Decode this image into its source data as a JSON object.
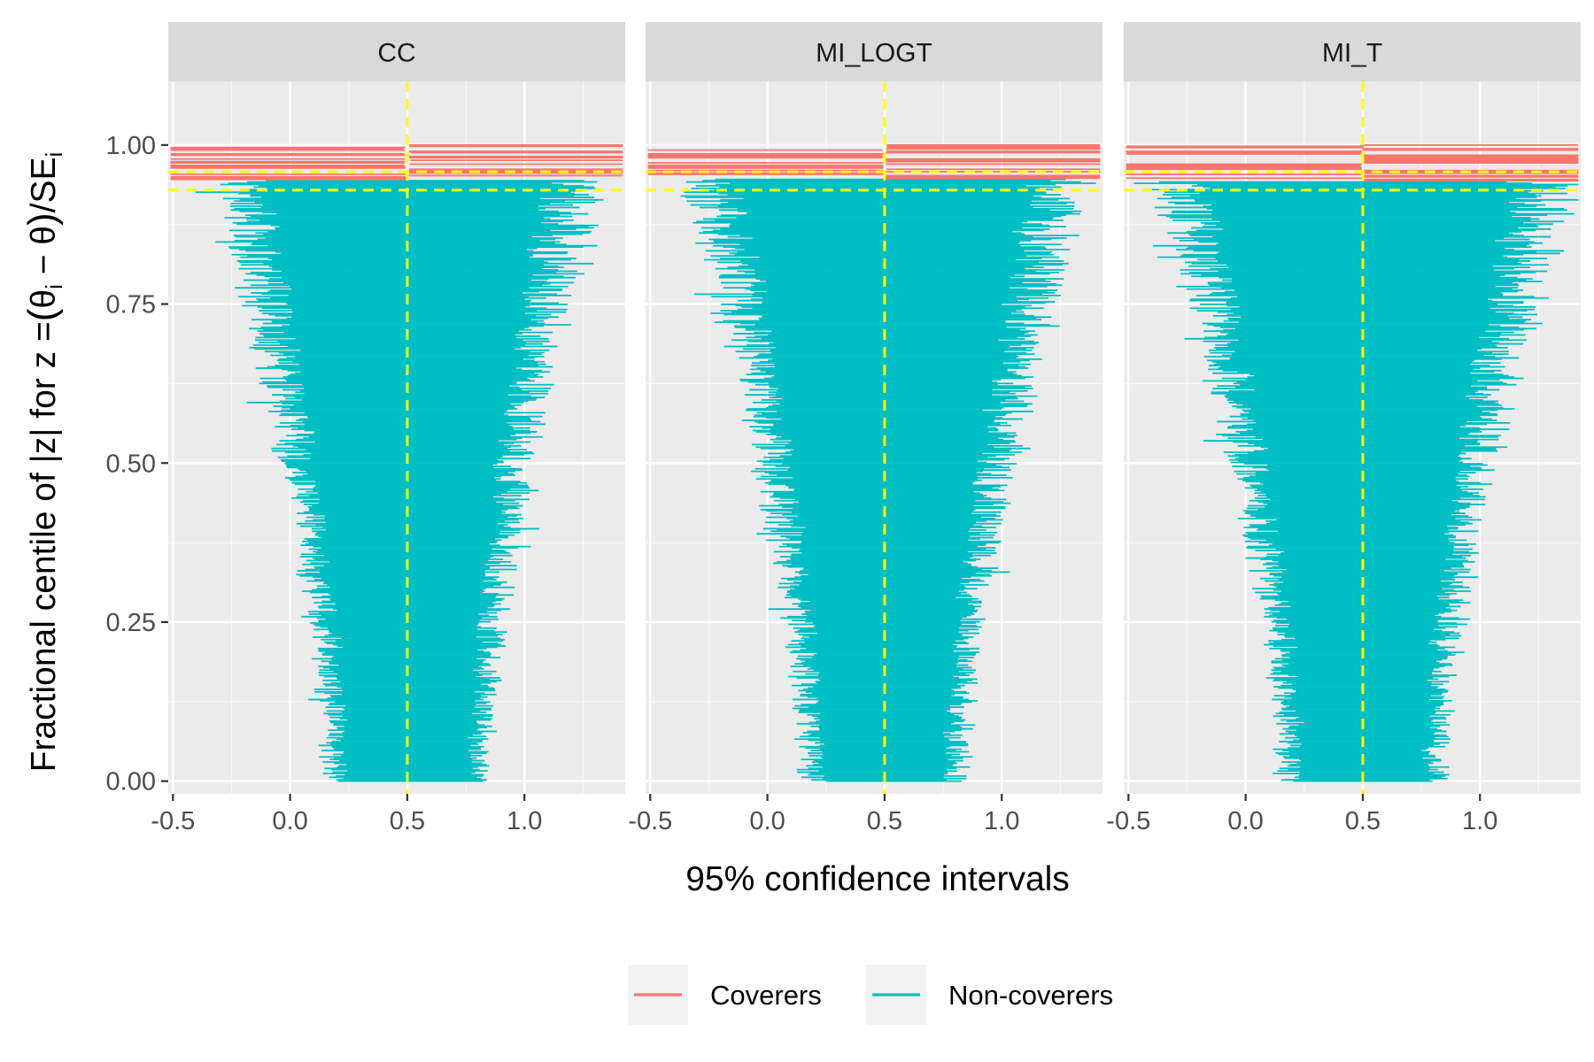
{
  "chart_data": {
    "type": "interval",
    "title": "",
    "xlabel": "95% confidence intervals",
    "ylabel_parts": {
      "pre": "Fractional centile of |z| for z =",
      "open": "(",
      "theta_i": "θ",
      "sub_i": "i",
      "minus": " − ",
      "theta": "θ",
      "close": ")",
      "slash": "/",
      "se": "SE",
      "se_sub": "i"
    },
    "panels": [
      {
        "name": "CC",
        "center": 0.5,
        "hw_min": 0.305,
        "hw_max": 0.75,
        "jitter": 0.05,
        "cover_lo": 0.944,
        "cover_left_extra": 0.17,
        "cover_right_extra": 0.05
      },
      {
        "name": "MI_LOGT",
        "center": 0.5,
        "hw_min": 0.305,
        "hw_max": 0.79,
        "jitter": 0.055,
        "cover_lo": 0.947,
        "cover_left_extra": 0.15,
        "cover_right_extra": 0.04
      },
      {
        "name": "MI_T",
        "center": 0.5,
        "hw_min": 0.305,
        "hw_max": 0.82,
        "jitter": 0.06,
        "cover_lo": 0.942,
        "cover_left_extra": 0.13,
        "cover_right_extra": 0.09
      }
    ],
    "xlim": [
      -0.52,
      1.43
    ],
    "ylim": [
      -0.02,
      1.1
    ],
    "x_ticks": [
      -0.5,
      0.0,
      0.5,
      1.0
    ],
    "x_tick_labels": [
      "-0.5",
      "0.0",
      "0.5",
      "1.0"
    ],
    "y_ticks": [
      0.0,
      0.25,
      0.5,
      0.75,
      1.0
    ],
    "y_tick_labels": [
      "0.00",
      "0.25",
      "0.50",
      "0.75",
      "1.00"
    ],
    "vline_x": 0.5,
    "hlines_y": [
      0.929,
      0.958
    ],
    "n_intervals": 500,
    "series": [
      {
        "name": "Coverers",
        "color": "#F8766D"
      },
      {
        "name": "Non-coverers",
        "color": "#00BFC4"
      }
    ],
    "reference_line_color": "#FFFF00",
    "grid": true,
    "legend_position": "bottom"
  }
}
